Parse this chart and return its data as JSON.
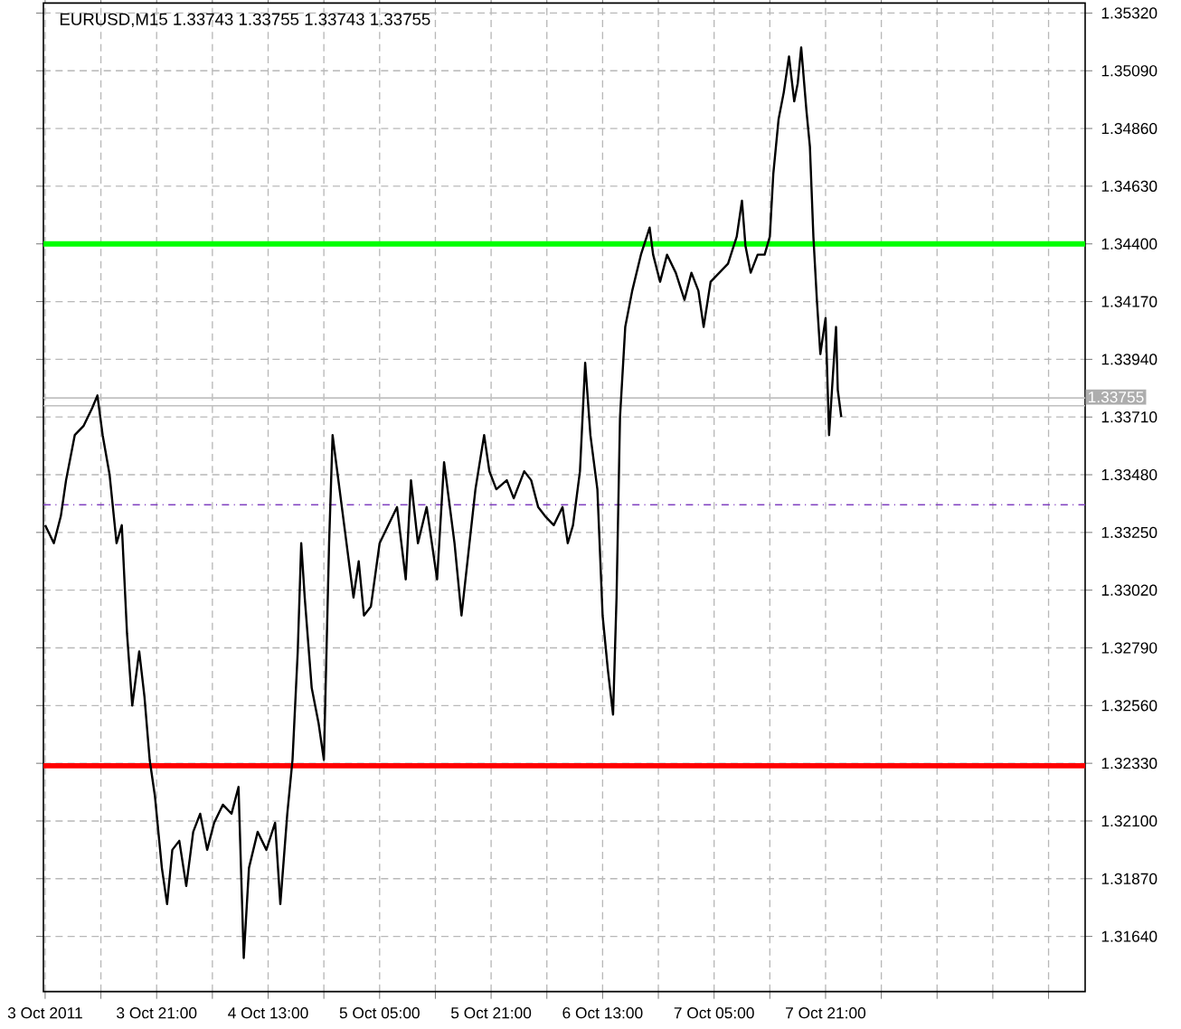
{
  "chart_data": {
    "type": "line",
    "title": "EURUSD,M15  1.33743 1.33755 1.33743 1.33755",
    "series": [
      {
        "color": "#000000",
        "x": [
          "2011-10-03T05:00",
          "2011-10-03T06:15",
          "2011-10-03T07:15",
          "2011-10-03T08:00",
          "2011-10-03T09:15",
          "2011-10-03T10:30",
          "2011-10-03T11:45",
          "2011-10-03T12:30",
          "2011-10-03T13:15",
          "2011-10-03T14:15",
          "2011-10-03T15:15",
          "2011-10-03T16:00",
          "2011-10-03T16:45",
          "2011-10-03T17:30",
          "2011-10-03T18:30",
          "2011-10-03T19:15",
          "2011-10-03T20:00",
          "2011-10-03T20:45",
          "2011-10-03T21:45",
          "2011-10-03T22:30",
          "2011-10-03T23:15",
          "2011-10-04T00:15",
          "2011-10-04T01:15",
          "2011-10-04T02:15",
          "2011-10-04T03:15",
          "2011-10-04T04:15",
          "2011-10-04T05:15",
          "2011-10-04T06:30",
          "2011-10-04T07:45",
          "2011-10-04T08:45",
          "2011-10-04T09:30",
          "2011-10-04T10:15",
          "2011-10-04T11:30",
          "2011-10-04T12:45",
          "2011-10-04T14:00",
          "2011-10-04T14:45",
          "2011-10-04T15:45",
          "2011-10-04T16:30",
          "2011-10-04T17:15",
          "2011-10-04T17:45",
          "2011-10-04T18:15",
          "2011-10-04T19:15",
          "2011-10-04T20:15",
          "2011-10-04T21:00",
          "2011-10-04T21:45",
          "2011-10-04T22:15",
          "2011-10-04T23:15",
          "2011-10-05T00:15",
          "2011-10-05T01:15",
          "2011-10-05T02:00",
          "2011-10-05T02:45",
          "2011-10-05T03:45",
          "2011-10-05T05:00",
          "2011-10-05T06:15",
          "2011-10-05T07:30",
          "2011-10-05T08:45",
          "2011-10-05T09:30",
          "2011-10-05T10:30",
          "2011-10-05T11:45",
          "2011-10-05T13:15",
          "2011-10-05T14:15",
          "2011-10-05T15:45",
          "2011-10-05T16:45",
          "2011-10-05T17:45",
          "2011-10-05T18:45",
          "2011-10-05T20:00",
          "2011-10-05T20:45",
          "2011-10-05T21:45",
          "2011-10-05T23:15",
          "2011-10-06T00:15",
          "2011-10-06T01:45",
          "2011-10-06T02:45",
          "2011-10-06T03:45",
          "2011-10-06T04:45",
          "2011-10-06T06:00",
          "2011-10-06T07:15",
          "2011-10-06T08:00",
          "2011-10-06T08:45",
          "2011-10-06T09:45",
          "2011-10-06T10:30",
          "2011-10-06T11:15",
          "2011-10-06T12:15",
          "2011-10-06T13:00",
          "2011-10-06T13:45",
          "2011-10-06T14:30",
          "2011-10-06T15:00",
          "2011-10-06T15:30",
          "2011-10-06T16:15",
          "2011-10-06T17:15",
          "2011-10-06T18:30",
          "2011-10-06T19:45",
          "2011-10-06T20:15",
          "2011-10-06T21:15",
          "2011-10-06T22:15",
          "2011-10-06T23:30",
          "2011-10-07T00:45",
          "2011-10-07T01:45",
          "2011-10-07T02:45",
          "2011-10-07T03:30",
          "2011-10-07T04:30",
          "2011-10-07T05:45",
          "2011-10-07T07:00",
          "2011-10-07T08:15",
          "2011-10-07T09:00",
          "2011-10-07T09:30",
          "2011-10-07T10:15",
          "2011-10-07T11:15",
          "2011-10-07T12:15",
          "2011-10-07T13:00",
          "2011-10-07T13:30",
          "2011-10-07T14:15",
          "2011-10-07T15:00",
          "2011-10-07T15:45",
          "2011-10-07T16:30",
          "2011-10-07T17:00",
          "2011-10-07T17:30",
          "2011-10-07T18:15",
          "2011-10-07T18:45",
          "2011-10-07T19:15",
          "2011-10-07T19:45",
          "2011-10-07T20:15",
          "2011-10-07T21:00",
          "2011-10-07T21:30",
          "2011-10-07T22:00",
          "2011-10-07T22:30",
          "2011-10-07T22:45",
          "2011-10-07T23:15"
        ],
        "values": [
          1.33279,
          1.33207,
          1.33315,
          1.33458,
          1.33638,
          1.33674,
          1.33746,
          1.33796,
          1.33638,
          1.3348,
          1.33207,
          1.33279,
          1.32847,
          1.3256,
          1.32776,
          1.32596,
          1.32344,
          1.322,
          1.31913,
          1.31769,
          1.31985,
          1.32021,
          1.31841,
          1.32057,
          1.32129,
          1.31985,
          1.32093,
          1.32165,
          1.32129,
          1.32236,
          1.31554,
          1.31913,
          1.32057,
          1.31985,
          1.32093,
          1.31769,
          1.32129,
          1.32344,
          1.32776,
          1.33207,
          1.32991,
          1.32631,
          1.32488,
          1.32344,
          1.33207,
          1.33638,
          1.33422,
          1.33207,
          1.32991,
          1.33135,
          1.32919,
          1.32955,
          1.33207,
          1.33279,
          1.33351,
          1.33063,
          1.33458,
          1.33207,
          1.33351,
          1.33063,
          1.3353,
          1.33207,
          1.32919,
          1.33171,
          1.33422,
          1.33638,
          1.33494,
          1.33422,
          1.33458,
          1.33386,
          1.33494,
          1.33458,
          1.33351,
          1.33315,
          1.33279,
          1.33351,
          1.33207,
          1.33279,
          1.33494,
          1.33926,
          1.33638,
          1.33422,
          1.32919,
          1.32704,
          1.32524,
          1.32991,
          1.3371,
          1.34069,
          1.34213,
          1.34357,
          1.34465,
          1.34357,
          1.34249,
          1.34357,
          1.34285,
          1.34177,
          1.34285,
          1.34213,
          1.34069,
          1.34249,
          1.34285,
          1.34321,
          1.34429,
          1.34572,
          1.34393,
          1.34285,
          1.34357,
          1.34357,
          1.34429,
          1.3468,
          1.34896,
          1.35004,
          1.35147,
          1.34968,
          1.3504,
          1.35183,
          1.34932,
          1.34788,
          1.34429,
          1.34177,
          1.33961,
          1.34105,
          1.33638,
          1.33854,
          1.34069,
          1.33818,
          1.3371
        ]
      }
    ],
    "xlim": [
      "2011-10-03T04:45",
      "2011-10-09T10:15"
    ],
    "xticks": [
      {
        "value": "2011-10-03T05:00",
        "label": "3 Oct 2011"
      },
      {
        "value": "2011-10-03T13:00",
        "label": null
      },
      {
        "value": "2011-10-03T21:00",
        "label": "3 Oct 21:00"
      },
      {
        "value": "2011-10-04T05:00",
        "label": null
      },
      {
        "value": "2011-10-04T13:00",
        "label": "4 Oct 13:00"
      },
      {
        "value": "2011-10-04T21:00",
        "label": null
      },
      {
        "value": "2011-10-05T05:00",
        "label": "5 Oct 05:00"
      },
      {
        "value": "2011-10-05T13:00",
        "label": null
      },
      {
        "value": "2011-10-05T21:00",
        "label": "5 Oct 21:00"
      },
      {
        "value": "2011-10-06T05:00",
        "label": null
      },
      {
        "value": "2011-10-06T13:00",
        "label": "6 Oct 13:00"
      },
      {
        "value": "2011-10-06T21:00",
        "label": null
      },
      {
        "value": "2011-10-07T05:00",
        "label": "7 Oct 05:00"
      },
      {
        "value": "2011-10-07T13:00",
        "label": null
      },
      {
        "value": "2011-10-07T21:00",
        "label": "7 Oct 21:00"
      },
      {
        "value": "2011-10-08T05:00",
        "label": null
      },
      {
        "value": "2011-10-08T13:00",
        "label": null
      },
      {
        "value": "2011-10-08T21:00",
        "label": null
      },
      {
        "value": "2011-10-09T05:00",
        "label": null
      }
    ],
    "ylim": [
      1.3142,
      1.3536
    ],
    "yticks": [
      {
        "value": 1.3164,
        "label": "1.31640"
      },
      {
        "value": 1.3187,
        "label": "1.31870"
      },
      {
        "value": 1.321,
        "label": "1.32100"
      },
      {
        "value": 1.3233,
        "label": "1.32330"
      },
      {
        "value": 1.3256,
        "label": "1.32560"
      },
      {
        "value": 1.3279,
        "label": "1.32790"
      },
      {
        "value": 1.3302,
        "label": "1.33020"
      },
      {
        "value": 1.3325,
        "label": "1.33250"
      },
      {
        "value": 1.3348,
        "label": "1.33480"
      },
      {
        "value": 1.3371,
        "label": "1.33710"
      },
      {
        "value": 1.3394,
        "label": "1.33940"
      },
      {
        "value": 1.3417,
        "label": "1.34170"
      },
      {
        "value": 1.344,
        "label": "1.34400"
      },
      {
        "value": 1.3463,
        "label": "1.34630"
      },
      {
        "value": 1.3486,
        "label": "1.34860"
      },
      {
        "value": 1.3509,
        "label": "1.35090"
      },
      {
        "value": 1.3532,
        "label": "1.35320"
      }
    ],
    "ref_lines": [
      {
        "axis": "y",
        "value": 1.344,
        "color": "#00ff00",
        "line_style": "solid"
      },
      {
        "axis": "y",
        "value": 1.3232,
        "color": "#ff0000",
        "line_style": "solid"
      },
      {
        "axis": "y",
        "value": 1.3336,
        "color": "#8040c0",
        "line_style": "dashdot"
      },
      {
        "axis": "y",
        "value": 1.33786,
        "color": "#c0c0c0",
        "line_style": "solid"
      },
      {
        "axis": "y",
        "value": 1.33755,
        "color": "#c0c0c0",
        "line_style": "solid",
        "label": "1.33755"
      }
    ],
    "grid": true,
    "marker": "none",
    "line_style": "solid"
  }
}
